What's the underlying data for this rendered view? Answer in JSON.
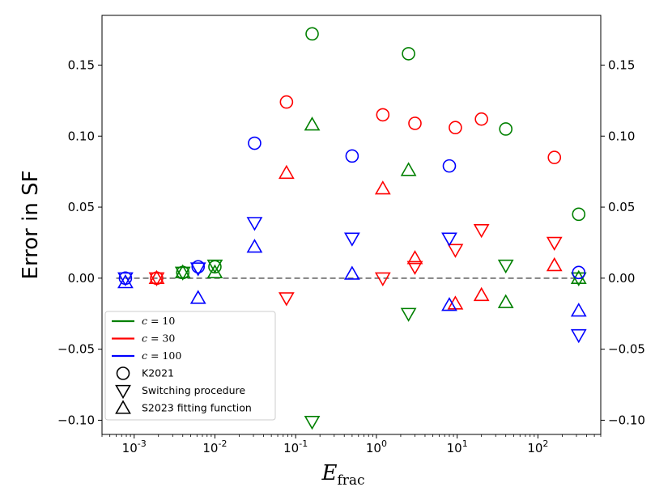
{
  "chart_data": {
    "type": "scatter",
    "title": "",
    "ylabel": "Error in SF",
    "xlabel": {
      "main": "E",
      "sub": "frac"
    },
    "xscale": "log",
    "xlim": [
      0.0004,
      600
    ],
    "ylim": [
      -0.11,
      0.185
    ],
    "yticks": [
      -0.1,
      -0.05,
      0.0,
      0.05,
      0.1,
      0.15
    ],
    "ytick_labels": [
      "−0.10",
      "−0.05",
      "0.00",
      "0.05",
      "0.10",
      "0.15"
    ],
    "xticks": [
      {
        "value": 0.001,
        "base": "10",
        "exp": "-3"
      },
      {
        "value": 0.01,
        "base": "10",
        "exp": "-2"
      },
      {
        "value": 0.1,
        "base": "10",
        "exp": "-1"
      },
      {
        "value": 1,
        "base": "10",
        "exp": "0"
      },
      {
        "value": 10,
        "base": "10",
        "exp": "1"
      },
      {
        "value": 100,
        "base": "10",
        "exp": "2"
      }
    ],
    "reference_line": {
      "y": 0.0,
      "style": "dashed",
      "color": "#808080"
    },
    "legend": {
      "placement": "lower-left",
      "entries": [
        {
          "kind": "line",
          "color": "#008000",
          "var": "c",
          "eq": " = 10"
        },
        {
          "kind": "line",
          "color": "#ff0000",
          "var": "c",
          "eq": " = 30"
        },
        {
          "kind": "line",
          "color": "#0000ff",
          "var": "c",
          "eq": " = 100"
        },
        {
          "kind": "marker",
          "marker": "circle",
          "label": "K2021"
        },
        {
          "kind": "marker",
          "marker": "triangle-down",
          "label": "Switching procedure"
        },
        {
          "kind": "marker",
          "marker": "triangle-up",
          "label": "S2023 fitting function"
        }
      ]
    },
    "series": [
      {
        "name": "c=10",
        "color": "#008000",
        "method": "K2021",
        "marker": "circle",
        "points": [
          [
            0.004,
            0.004
          ],
          [
            0.01,
            0.008
          ],
          [
            0.16,
            0.172
          ],
          [
            2.5,
            0.158
          ],
          [
            40,
            0.105
          ],
          [
            320,
            0.045
          ]
        ]
      },
      {
        "name": "c=10",
        "color": "#008000",
        "method": "Switching procedure",
        "marker": "triangle-down",
        "points": [
          [
            0.004,
            0.004
          ],
          [
            0.01,
            0.009
          ],
          [
            0.16,
            -0.101
          ],
          [
            2.5,
            -0.025
          ],
          [
            40,
            0.009
          ],
          [
            320,
            0.0
          ]
        ]
      },
      {
        "name": "c=10",
        "color": "#008000",
        "method": "S2023 fitting function",
        "marker": "triangle-up",
        "points": [
          [
            0.004,
            0.004
          ],
          [
            0.01,
            0.004
          ],
          [
            0.16,
            0.108
          ],
          [
            2.5,
            0.076
          ],
          [
            40,
            -0.017
          ],
          [
            320,
            0.0
          ]
        ]
      },
      {
        "name": "c=30",
        "color": "#ff0000",
        "method": "K2021",
        "marker": "circle",
        "points": [
          [
            0.0019,
            0.0
          ],
          [
            0.077,
            0.124
          ],
          [
            1.2,
            0.115
          ],
          [
            3.0,
            0.109
          ],
          [
            9.5,
            0.106
          ],
          [
            20,
            0.112
          ],
          [
            160,
            0.085
          ]
        ]
      },
      {
        "name": "c=30",
        "color": "#ff0000",
        "method": "Switching procedure",
        "marker": "triangle-down",
        "points": [
          [
            0.0019,
            0.0
          ],
          [
            0.077,
            -0.014
          ],
          [
            1.2,
            0.0
          ],
          [
            3.0,
            0.008
          ],
          [
            9.5,
            0.02
          ],
          [
            20,
            0.034
          ],
          [
            160,
            0.025
          ]
        ]
      },
      {
        "name": "c=30",
        "color": "#ff0000",
        "method": "S2023 fitting function",
        "marker": "triangle-up",
        "points": [
          [
            0.0019,
            0.0
          ],
          [
            0.077,
            0.074
          ],
          [
            1.2,
            0.063
          ],
          [
            3.0,
            0.014
          ],
          [
            9.5,
            -0.018
          ],
          [
            20,
            -0.012
          ],
          [
            160,
            0.009
          ]
        ]
      },
      {
        "name": "c=100",
        "color": "#0000ff",
        "method": "K2021",
        "marker": "circle",
        "points": [
          [
            0.00078,
            0.0
          ],
          [
            0.0062,
            0.008
          ],
          [
            0.031,
            0.095
          ],
          [
            0.5,
            0.086
          ],
          [
            8,
            0.079
          ],
          [
            320,
            0.004
          ]
        ]
      },
      {
        "name": "c=100",
        "color": "#0000ff",
        "method": "Switching procedure",
        "marker": "triangle-down",
        "points": [
          [
            0.00078,
            0.0
          ],
          [
            0.0062,
            0.007
          ],
          [
            0.031,
            0.039
          ],
          [
            0.5,
            0.028
          ],
          [
            8,
            0.028
          ],
          [
            320,
            -0.04
          ]
        ]
      },
      {
        "name": "c=100",
        "color": "#0000ff",
        "method": "S2023 fitting function",
        "marker": "triangle-up",
        "points": [
          [
            0.00078,
            -0.003
          ],
          [
            0.0062,
            -0.014
          ],
          [
            0.031,
            0.022
          ],
          [
            0.5,
            0.003
          ],
          [
            8,
            -0.019
          ],
          [
            320,
            -0.023
          ]
        ]
      }
    ]
  }
}
